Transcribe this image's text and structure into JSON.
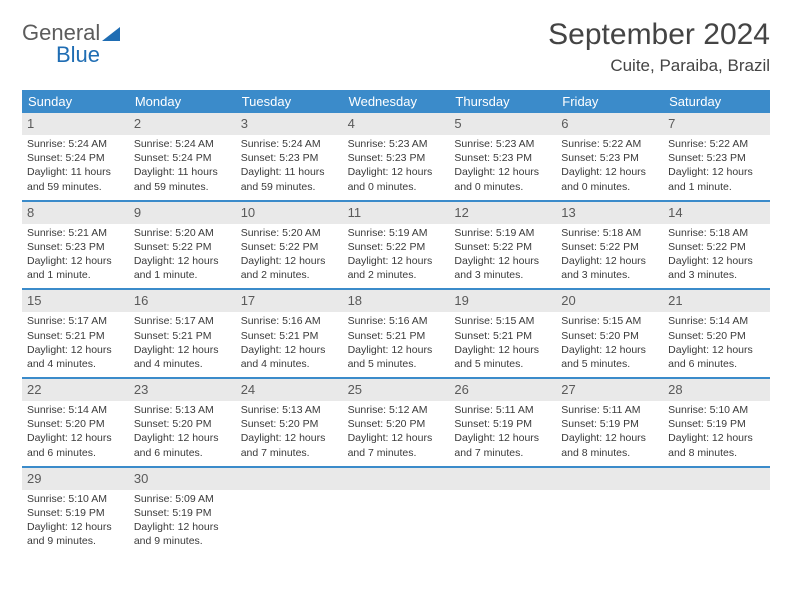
{
  "logo": {
    "word1": "General",
    "word2": "Blue"
  },
  "header": {
    "month_title": "September 2024",
    "location": "Cuite, Paraiba, Brazil"
  },
  "colors": {
    "header_bar": "#3b8bca",
    "day_header_bg": "#e9e9e9",
    "week_divider": "#3b8bca",
    "logo_accent": "#1f6db3",
    "text": "#3a3a3a"
  },
  "typography": {
    "title_fontsize_pt": 22,
    "location_fontsize_pt": 13,
    "dow_fontsize_pt": 10,
    "body_fontsize_pt": 8
  },
  "calendar": {
    "columns": [
      "Sunday",
      "Monday",
      "Tuesday",
      "Wednesday",
      "Thursday",
      "Friday",
      "Saturday"
    ],
    "weeks": [
      [
        {
          "n": "1",
          "sr": "Sunrise: 5:24 AM",
          "ss": "Sunset: 5:24 PM",
          "d1": "Daylight: 11 hours",
          "d2": "and 59 minutes."
        },
        {
          "n": "2",
          "sr": "Sunrise: 5:24 AM",
          "ss": "Sunset: 5:24 PM",
          "d1": "Daylight: 11 hours",
          "d2": "and 59 minutes."
        },
        {
          "n": "3",
          "sr": "Sunrise: 5:24 AM",
          "ss": "Sunset: 5:23 PM",
          "d1": "Daylight: 11 hours",
          "d2": "and 59 minutes."
        },
        {
          "n": "4",
          "sr": "Sunrise: 5:23 AM",
          "ss": "Sunset: 5:23 PM",
          "d1": "Daylight: 12 hours",
          "d2": "and 0 minutes."
        },
        {
          "n": "5",
          "sr": "Sunrise: 5:23 AM",
          "ss": "Sunset: 5:23 PM",
          "d1": "Daylight: 12 hours",
          "d2": "and 0 minutes."
        },
        {
          "n": "6",
          "sr": "Sunrise: 5:22 AM",
          "ss": "Sunset: 5:23 PM",
          "d1": "Daylight: 12 hours",
          "d2": "and 0 minutes."
        },
        {
          "n": "7",
          "sr": "Sunrise: 5:22 AM",
          "ss": "Sunset: 5:23 PM",
          "d1": "Daylight: 12 hours",
          "d2": "and 1 minute."
        }
      ],
      [
        {
          "n": "8",
          "sr": "Sunrise: 5:21 AM",
          "ss": "Sunset: 5:23 PM",
          "d1": "Daylight: 12 hours",
          "d2": "and 1 minute."
        },
        {
          "n": "9",
          "sr": "Sunrise: 5:20 AM",
          "ss": "Sunset: 5:22 PM",
          "d1": "Daylight: 12 hours",
          "d2": "and 1 minute."
        },
        {
          "n": "10",
          "sr": "Sunrise: 5:20 AM",
          "ss": "Sunset: 5:22 PM",
          "d1": "Daylight: 12 hours",
          "d2": "and 2 minutes."
        },
        {
          "n": "11",
          "sr": "Sunrise: 5:19 AM",
          "ss": "Sunset: 5:22 PM",
          "d1": "Daylight: 12 hours",
          "d2": "and 2 minutes."
        },
        {
          "n": "12",
          "sr": "Sunrise: 5:19 AM",
          "ss": "Sunset: 5:22 PM",
          "d1": "Daylight: 12 hours",
          "d2": "and 3 minutes."
        },
        {
          "n": "13",
          "sr": "Sunrise: 5:18 AM",
          "ss": "Sunset: 5:22 PM",
          "d1": "Daylight: 12 hours",
          "d2": "and 3 minutes."
        },
        {
          "n": "14",
          "sr": "Sunrise: 5:18 AM",
          "ss": "Sunset: 5:22 PM",
          "d1": "Daylight: 12 hours",
          "d2": "and 3 minutes."
        }
      ],
      [
        {
          "n": "15",
          "sr": "Sunrise: 5:17 AM",
          "ss": "Sunset: 5:21 PM",
          "d1": "Daylight: 12 hours",
          "d2": "and 4 minutes."
        },
        {
          "n": "16",
          "sr": "Sunrise: 5:17 AM",
          "ss": "Sunset: 5:21 PM",
          "d1": "Daylight: 12 hours",
          "d2": "and 4 minutes."
        },
        {
          "n": "17",
          "sr": "Sunrise: 5:16 AM",
          "ss": "Sunset: 5:21 PM",
          "d1": "Daylight: 12 hours",
          "d2": "and 4 minutes."
        },
        {
          "n": "18",
          "sr": "Sunrise: 5:16 AM",
          "ss": "Sunset: 5:21 PM",
          "d1": "Daylight: 12 hours",
          "d2": "and 5 minutes."
        },
        {
          "n": "19",
          "sr": "Sunrise: 5:15 AM",
          "ss": "Sunset: 5:21 PM",
          "d1": "Daylight: 12 hours",
          "d2": "and 5 minutes."
        },
        {
          "n": "20",
          "sr": "Sunrise: 5:15 AM",
          "ss": "Sunset: 5:20 PM",
          "d1": "Daylight: 12 hours",
          "d2": "and 5 minutes."
        },
        {
          "n": "21",
          "sr": "Sunrise: 5:14 AM",
          "ss": "Sunset: 5:20 PM",
          "d1": "Daylight: 12 hours",
          "d2": "and 6 minutes."
        }
      ],
      [
        {
          "n": "22",
          "sr": "Sunrise: 5:14 AM",
          "ss": "Sunset: 5:20 PM",
          "d1": "Daylight: 12 hours",
          "d2": "and 6 minutes."
        },
        {
          "n": "23",
          "sr": "Sunrise: 5:13 AM",
          "ss": "Sunset: 5:20 PM",
          "d1": "Daylight: 12 hours",
          "d2": "and 6 minutes."
        },
        {
          "n": "24",
          "sr": "Sunrise: 5:13 AM",
          "ss": "Sunset: 5:20 PM",
          "d1": "Daylight: 12 hours",
          "d2": "and 7 minutes."
        },
        {
          "n": "25",
          "sr": "Sunrise: 5:12 AM",
          "ss": "Sunset: 5:20 PM",
          "d1": "Daylight: 12 hours",
          "d2": "and 7 minutes."
        },
        {
          "n": "26",
          "sr": "Sunrise: 5:11 AM",
          "ss": "Sunset: 5:19 PM",
          "d1": "Daylight: 12 hours",
          "d2": "and 7 minutes."
        },
        {
          "n": "27",
          "sr": "Sunrise: 5:11 AM",
          "ss": "Sunset: 5:19 PM",
          "d1": "Daylight: 12 hours",
          "d2": "and 8 minutes."
        },
        {
          "n": "28",
          "sr": "Sunrise: 5:10 AM",
          "ss": "Sunset: 5:19 PM",
          "d1": "Daylight: 12 hours",
          "d2": "and 8 minutes."
        }
      ],
      [
        {
          "n": "29",
          "sr": "Sunrise: 5:10 AM",
          "ss": "Sunset: 5:19 PM",
          "d1": "Daylight: 12 hours",
          "d2": "and 9 minutes."
        },
        {
          "n": "30",
          "sr": "Sunrise: 5:09 AM",
          "ss": "Sunset: 5:19 PM",
          "d1": "Daylight: 12 hours",
          "d2": "and 9 minutes."
        },
        null,
        null,
        null,
        null,
        null
      ]
    ]
  }
}
